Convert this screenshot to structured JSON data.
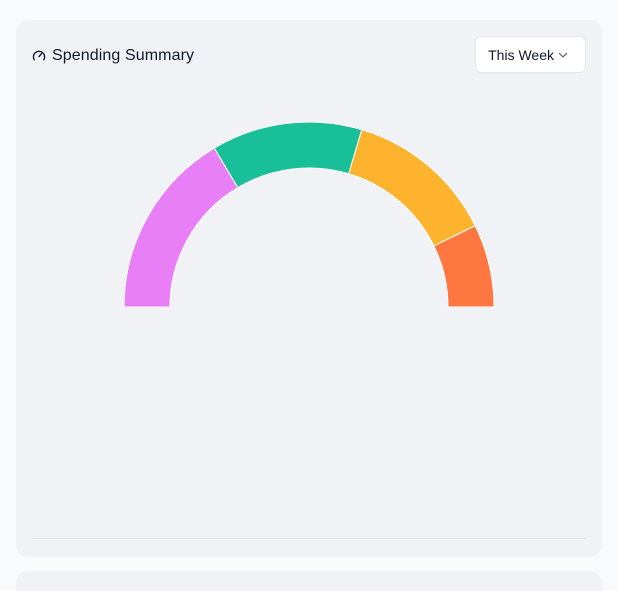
{
  "card": {
    "title": "Spending Summary",
    "title_icon": "gauge-icon",
    "period_dropdown": {
      "selected": "This Week",
      "icon": "chevron-down-icon"
    }
  },
  "chart_data": {
    "type": "pie",
    "subtype": "half-donut",
    "values": [
      25,
      20,
      20,
      11
    ],
    "colors": [
      "#e97ff6",
      "#18bf99",
      "#fdb32d",
      "#fe7741"
    ]
  }
}
